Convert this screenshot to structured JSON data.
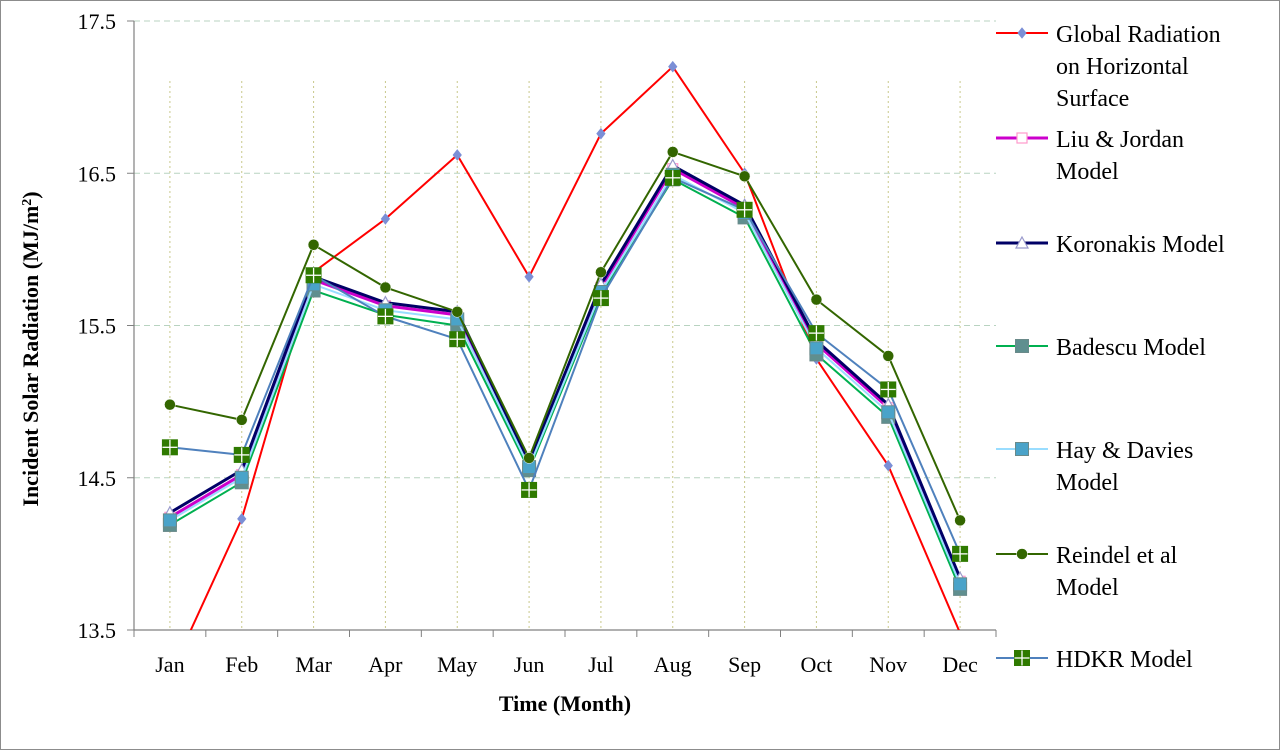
{
  "chart_data": {
    "type": "line",
    "title": "",
    "xlabel": "Time (Month)",
    "ylabel": "Incident Solar Radiation (MJ/m²)",
    "ylim": [
      13.5,
      17.5
    ],
    "yticks": [
      "13.5",
      "14.5",
      "15.5",
      "16.5",
      "17.5"
    ],
    "ytick_values": [
      13.5,
      14.5,
      15.5,
      16.5,
      17.5
    ],
    "categories": [
      "Jan",
      "Feb",
      "Mar",
      "Apr",
      "May",
      "Jun",
      "Jul",
      "Aug",
      "Sep",
      "Oct",
      "Nov",
      "Dec"
    ],
    "grid": "horizontal major gridlines (dashed) and vertical drop lines (dotted)",
    "legend_position": "right",
    "series": [
      {
        "name": "Global Radiation on Horizontal Surface",
        "legend_lines": [
          "Global Radiation",
          "on Horizontal",
          "Surface"
        ],
        "color": "#ff0000",
        "marker": "diamond",
        "marker_color": "#7b8fd6",
        "values": [
          13.2,
          14.23,
          15.85,
          16.2,
          16.62,
          15.82,
          16.76,
          17.2,
          16.5,
          15.28,
          14.58,
          13.48
        ]
      },
      {
        "name": "Liu & Jordan Model",
        "legend_lines": [
          "Liu & Jordan",
          "Model"
        ],
        "color": "#cc00cc",
        "marker": "square-open",
        "marker_color": "#ff99cc",
        "values": [
          14.24,
          14.52,
          15.8,
          15.63,
          15.57,
          14.58,
          15.75,
          16.53,
          16.27,
          15.38,
          14.96,
          13.82
        ]
      },
      {
        "name": "Koronakis Model",
        "legend_lines": [
          "Koronakis Model"
        ],
        "color": "#000066",
        "marker": "triangle-open",
        "marker_color": "#9999cc",
        "values": [
          14.27,
          14.55,
          15.82,
          15.65,
          15.59,
          14.6,
          15.77,
          16.55,
          16.29,
          15.4,
          14.98,
          13.84
        ]
      },
      {
        "name": "Badescu Model",
        "legend_lines": [
          "Badescu Model"
        ],
        "color": "#00b050",
        "marker": "square",
        "marker_color": "#5f8f8f",
        "values": [
          14.19,
          14.47,
          15.73,
          15.57,
          15.5,
          14.55,
          15.7,
          16.46,
          16.21,
          15.31,
          14.9,
          13.77
        ]
      },
      {
        "name": "Hay & Davies Model",
        "legend_lines": [
          "Hay & Davies",
          "Model"
        ],
        "color": "#99ddff",
        "marker": "square",
        "marker_color": "#4aa3c9",
        "values": [
          14.22,
          14.5,
          15.77,
          15.6,
          15.54,
          14.57,
          15.72,
          16.49,
          16.24,
          15.35,
          14.93,
          13.8
        ]
      },
      {
        "name": "Reindel et al Model",
        "legend_lines": [
          "Reindel et al",
          "Model"
        ],
        "color": "#336600",
        "marker": "circle",
        "marker_color": "#336600",
        "values": [
          14.98,
          14.88,
          16.03,
          15.75,
          15.59,
          14.63,
          15.85,
          16.64,
          16.48,
          15.67,
          15.3,
          14.22
        ]
      },
      {
        "name": "HDKR Model",
        "legend_lines": [
          "HDKR Model"
        ],
        "color": "#4f81bd",
        "marker": "square-cross",
        "marker_color": "#2f7a00",
        "values": [
          14.7,
          14.65,
          15.83,
          15.56,
          15.41,
          14.42,
          15.68,
          16.47,
          16.26,
          15.45,
          15.08,
          14.0
        ]
      }
    ]
  }
}
